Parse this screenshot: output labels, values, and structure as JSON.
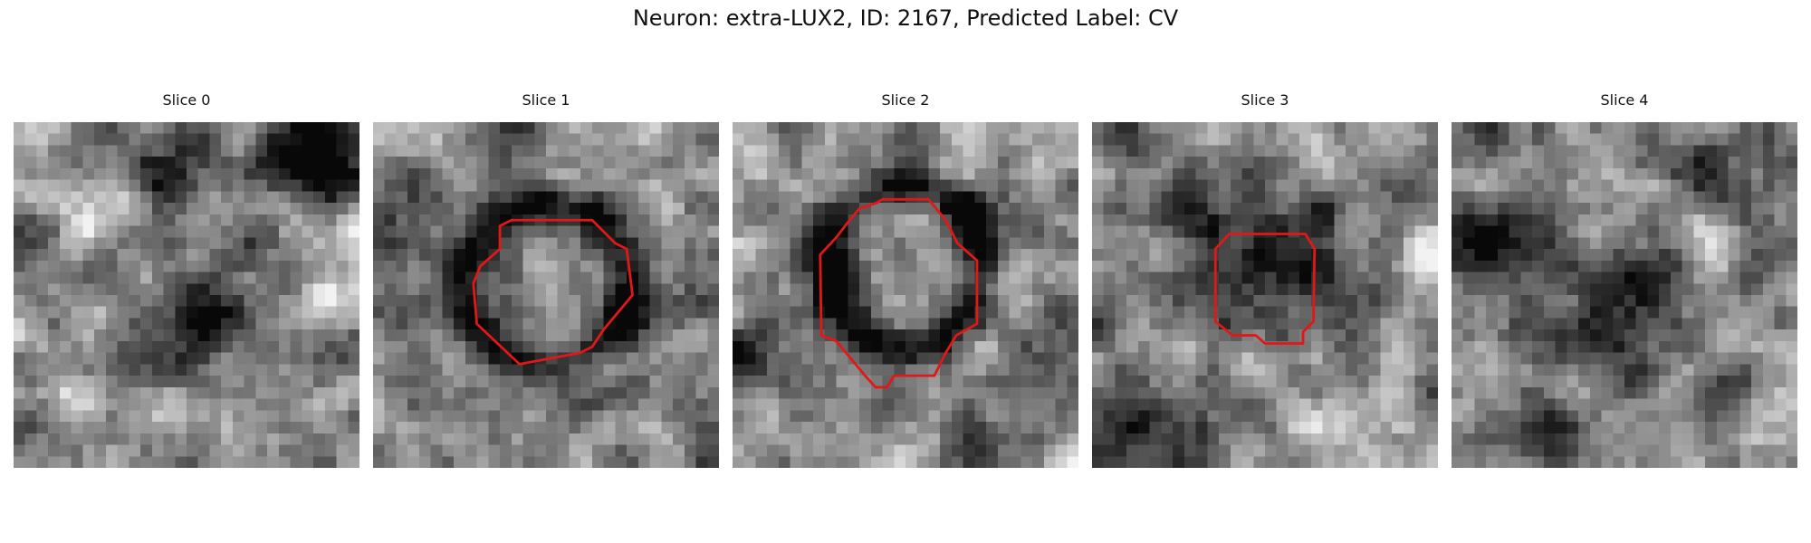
{
  "figure": {
    "title": "Neuron: extra-LUX2, ID: 2167, Predicted Label: CV",
    "outline_color": "#e01818"
  },
  "slices": [
    {
      "title": "Slice 0",
      "has_outline": false
    },
    {
      "title": "Slice 1",
      "has_outline": true
    },
    {
      "title": "Slice 2",
      "has_outline": true
    },
    {
      "title": "Slice 3",
      "has_outline": true
    },
    {
      "title": "Slice 4",
      "has_outline": false
    }
  ]
}
